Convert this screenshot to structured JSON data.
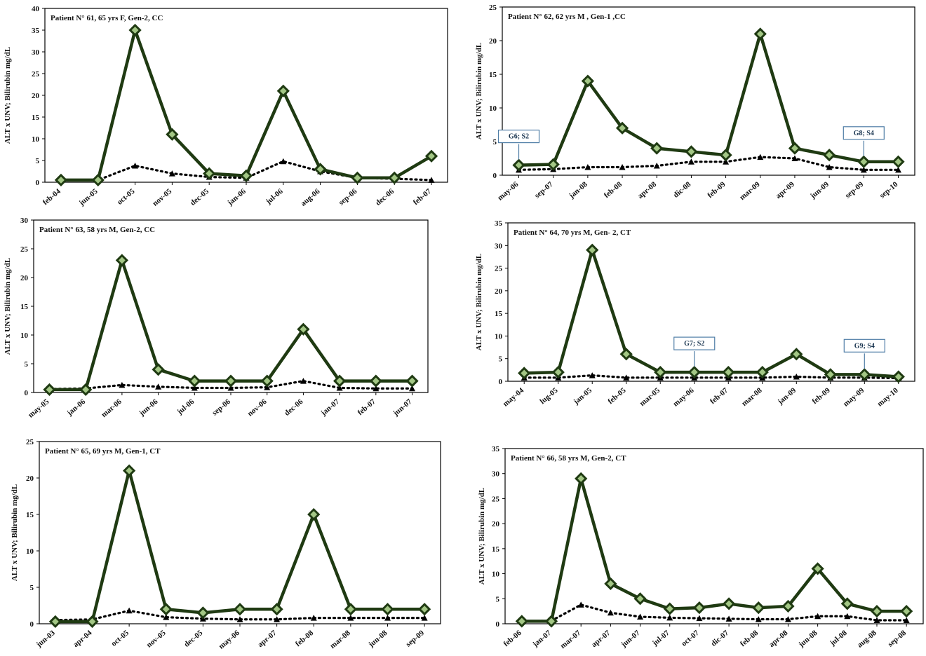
{
  "figure": {
    "ylabel": "ALT x UNV; Bilirubin mg/dL"
  },
  "colors": {
    "alt_series": "#1f3a12",
    "marker_fill": "#a3c785",
    "bili_series": "#000000",
    "frame": "#000000",
    "annotation": "#4f7da6"
  },
  "chart_data": [
    {
      "type": "line",
      "title": "Patient N° 61, 65 yrs F, Gen-2,  CC",
      "categories": [
        "feb-04",
        "jun-05",
        "oct-05",
        "nov-05",
        "dec-05",
        "jan-06",
        "jul-06",
        "aug-06",
        "sep-06",
        "dec-06",
        "feb-07"
      ],
      "ylim": [
        0,
        40
      ],
      "yticks": [
        0,
        5,
        10,
        15,
        20,
        25,
        30,
        35,
        40
      ],
      "series": [
        {
          "values": [
            0.5,
            0.5,
            35,
            11,
            2,
            1.5,
            21,
            3,
            1,
            1,
            6
          ]
        },
        {
          "values": [
            0.5,
            0.5,
            3.8,
            2,
            1.2,
            1,
            4.8,
            2.5,
            1,
            0.8,
            0.5
          ]
        }
      ],
      "annotations": []
    },
    {
      "type": "line",
      "title": "Patient N° 62, 62 yrs M , Gen-1 ,CC",
      "categories": [
        "may-06",
        "sep-07",
        "jan-08",
        "feb-08",
        "apr-08",
        "dic-08",
        "feb-09",
        "mar-09",
        "apr-09",
        "jun-09",
        "sep-09",
        "sep-10"
      ],
      "ylim": [
        0,
        25
      ],
      "yticks": [
        0,
        5,
        10,
        15,
        20,
        25
      ],
      "series": [
        {
          "values": [
            1.5,
            1.6,
            14,
            7,
            4,
            3.5,
            3,
            21,
            4,
            3,
            2,
            2
          ]
        },
        {
          "values": [
            0.8,
            0.9,
            1.2,
            1.2,
            1.4,
            2,
            2,
            2.7,
            2.5,
            1.2,
            0.8,
            0.8
          ]
        }
      ],
      "annotations": [
        {
          "text": "G6; S2",
          "index": 0
        },
        {
          "text": "G8; S4",
          "index": 10
        }
      ]
    },
    {
      "type": "line",
      "title": "Patient N° 63, 58 yrs M, Gen-2, CC",
      "categories": [
        "may-05",
        "jan-06",
        "mar-06",
        "jun-06",
        "jul-06",
        "sep-06",
        "nov-06",
        "dec-06",
        "jan-07",
        "feb-07",
        "jun-07"
      ],
      "ylim": [
        0,
        30
      ],
      "yticks": [
        0,
        5,
        10,
        15,
        20,
        25,
        30
      ],
      "series": [
        {
          "values": [
            0.5,
            0.5,
            23,
            4,
            2,
            2,
            2,
            11,
            2,
            2,
            2
          ]
        },
        {
          "values": [
            0.6,
            0.7,
            1.3,
            1,
            0.8,
            0.8,
            0.9,
            2,
            0.8,
            0.7,
            0.7
          ]
        }
      ],
      "annotations": []
    },
    {
      "type": "line",
      "title": "Patient N° 64, 70 yrs M, Gen- 2, CT",
      "categories": [
        "may-04",
        "lug-05",
        "jan-05",
        "feb-05",
        "mar-05",
        "may-06",
        "feb-07",
        "mar-08",
        "jan-09",
        "feb-09",
        "may-09",
        "may-10"
      ],
      "ylim": [
        0,
        35
      ],
      "yticks": [
        0,
        5,
        10,
        15,
        20,
        25,
        30,
        35
      ],
      "series": [
        {
          "values": [
            1.8,
            2,
            29,
            6,
            2,
            2,
            2,
            2,
            6,
            1.5,
            1.5,
            1
          ]
        },
        {
          "values": [
            0.8,
            0.8,
            1.3,
            0.8,
            0.8,
            0.8,
            0.8,
            0.8,
            1,
            0.8,
            0.8,
            0.7
          ]
        }
      ],
      "annotations": [
        {
          "text": "G7; S2",
          "index": 5
        },
        {
          "text": "G9; S4",
          "index": 10
        }
      ]
    },
    {
      "type": "line",
      "title": "Patient N° 65, 69 yrs M, Gen-1, CT",
      "categories": [
        "jun-03",
        "apr-04",
        "oct-05",
        "nov-05",
        "dec-05",
        "may-06",
        "apr-07",
        "feb-08",
        "mar-08",
        "jun-08",
        "sep-09"
      ],
      "ylim": [
        0,
        25
      ],
      "yticks": [
        0,
        5,
        10,
        15,
        20,
        25
      ],
      "series": [
        {
          "values": [
            0.3,
            0.3,
            21,
            2,
            1.5,
            2,
            2,
            15,
            2,
            2,
            2
          ]
        },
        {
          "values": [
            0.5,
            0.6,
            1.8,
            0.9,
            0.7,
            0.6,
            0.6,
            0.8,
            0.8,
            0.8,
            0.8
          ]
        }
      ],
      "annotations": []
    },
    {
      "type": "line",
      "title": "Patient N° 66, 58 yrs M, Gen-2, CT",
      "categories": [
        "feb-06",
        "jan-07",
        "mar-07",
        "apr-07",
        "jun-07",
        "jul-07",
        "oct-07",
        "dic-07",
        "feb-08",
        "apr-08",
        "jun-08",
        "jul-08",
        "aug-08",
        "sep-08"
      ],
      "ylim": [
        0,
        35
      ],
      "yticks": [
        0,
        5,
        10,
        15,
        20,
        25,
        30,
        35
      ],
      "series": [
        {
          "values": [
            0.5,
            0.5,
            29,
            8,
            5,
            3,
            3.2,
            4,
            3.2,
            3.5,
            11,
            4,
            2.5,
            2.5
          ]
        },
        {
          "values": [
            0.5,
            0.6,
            3.8,
            2.2,
            1.4,
            1.2,
            1.1,
            1,
            0.9,
            0.9,
            1.5,
            1.5,
            0.7,
            0.7
          ]
        }
      ],
      "annotations": []
    }
  ]
}
